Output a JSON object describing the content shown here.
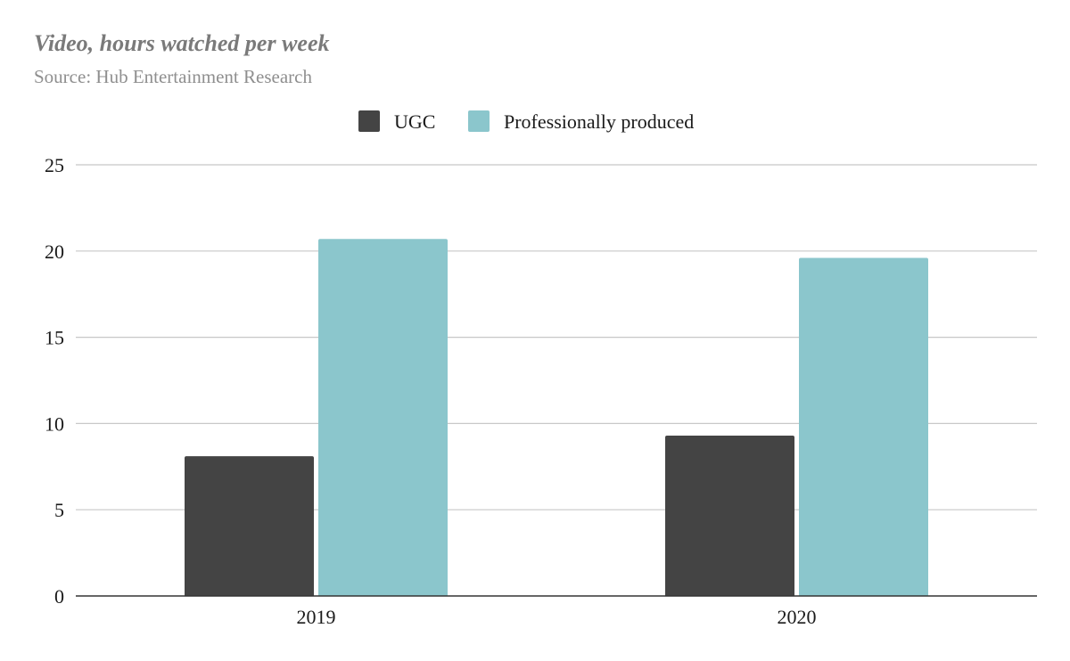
{
  "chart_data": {
    "type": "bar",
    "title": "Video, hours watched per week",
    "subtitle": "Source: Hub Entertainment Research",
    "categories": [
      "2019",
      "2020"
    ],
    "series": [
      {
        "name": "UGC",
        "color": "#444444",
        "values": [
          8.1,
          9.3
        ]
      },
      {
        "name": "Professionally produced",
        "color": "#8bc6cc",
        "values": [
          20.7,
          19.6
        ]
      }
    ],
    "ylim": [
      0,
      25
    ],
    "yticks": [
      0,
      5,
      10,
      15,
      20,
      25
    ],
    "grid": true,
    "legend": "top-center",
    "xlabel": "",
    "ylabel": ""
  }
}
